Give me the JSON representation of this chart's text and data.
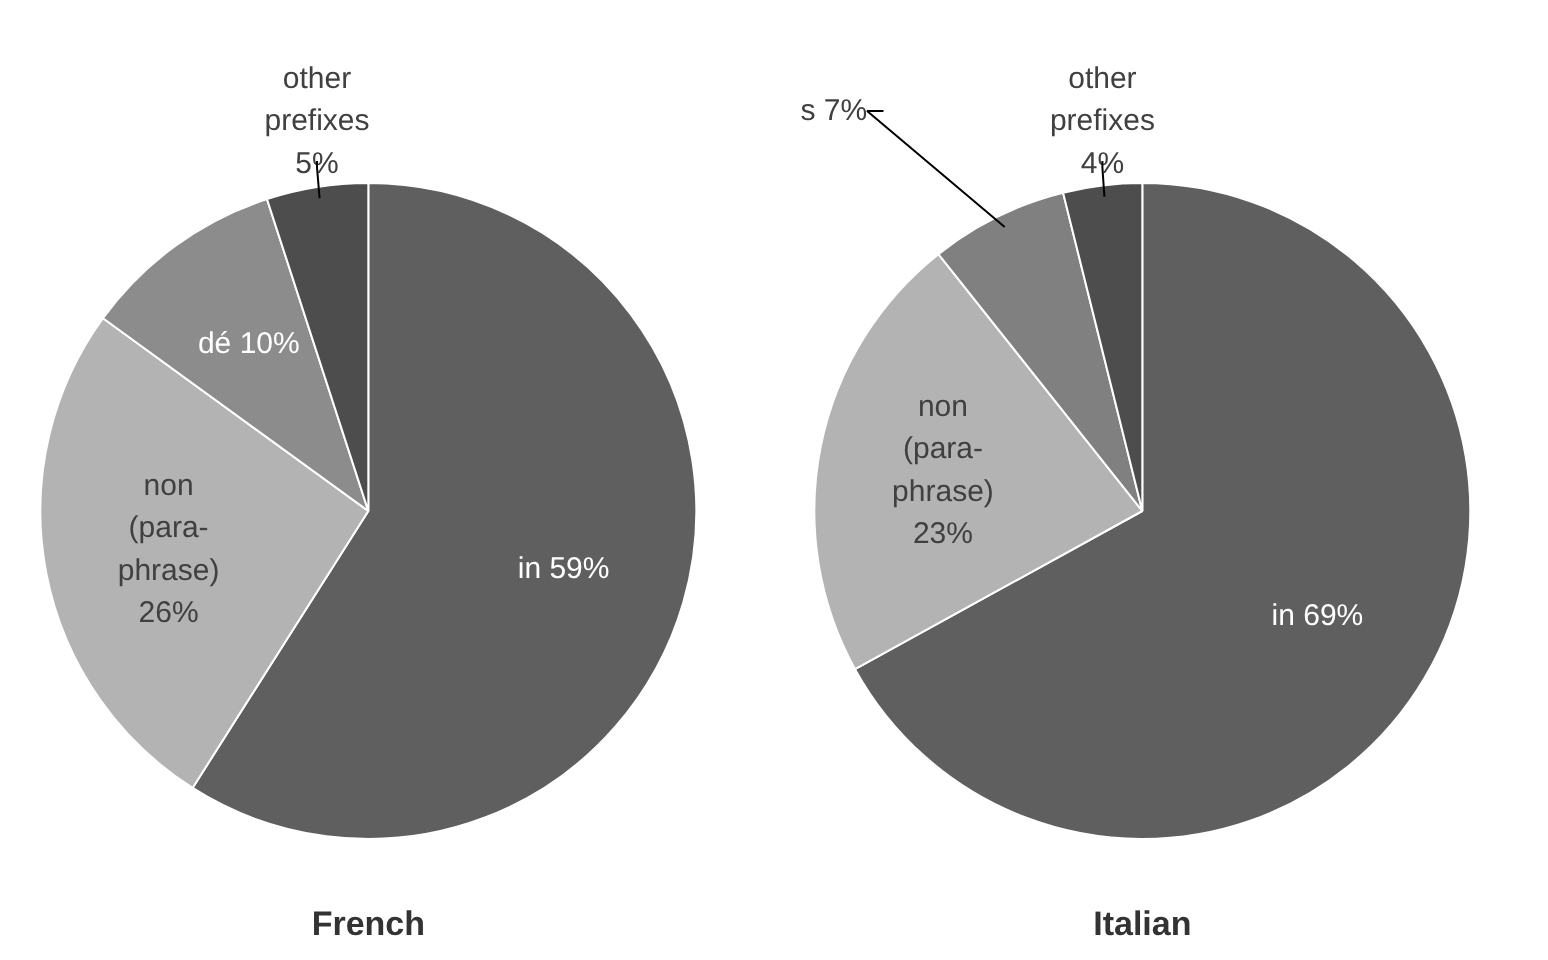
{
  "chart_data": [
    {
      "type": "pie",
      "title": "French",
      "categories": [
        "in",
        "non (para-phrase)",
        "dé",
        "other prefixes"
      ],
      "values": [
        59,
        26,
        10,
        5
      ],
      "colors": [
        "#5f5f5f",
        "#b3b3b3",
        "#8c8c8c",
        "#4d4d4d"
      ],
      "value_labels": [
        "59%",
        "26%",
        "10%",
        "5%"
      ]
    },
    {
      "type": "pie",
      "title": "Italian",
      "categories": [
        "in",
        "non (para-phrase)",
        "s",
        "other prefixes"
      ],
      "values": [
        69,
        23,
        7,
        4
      ],
      "colors": [
        "#5f5f5f",
        "#b3b3b3",
        "#808080",
        "#4d4d4d"
      ],
      "value_labels": [
        "69%",
        "23%",
        "7%",
        "4%"
      ]
    }
  ]
}
